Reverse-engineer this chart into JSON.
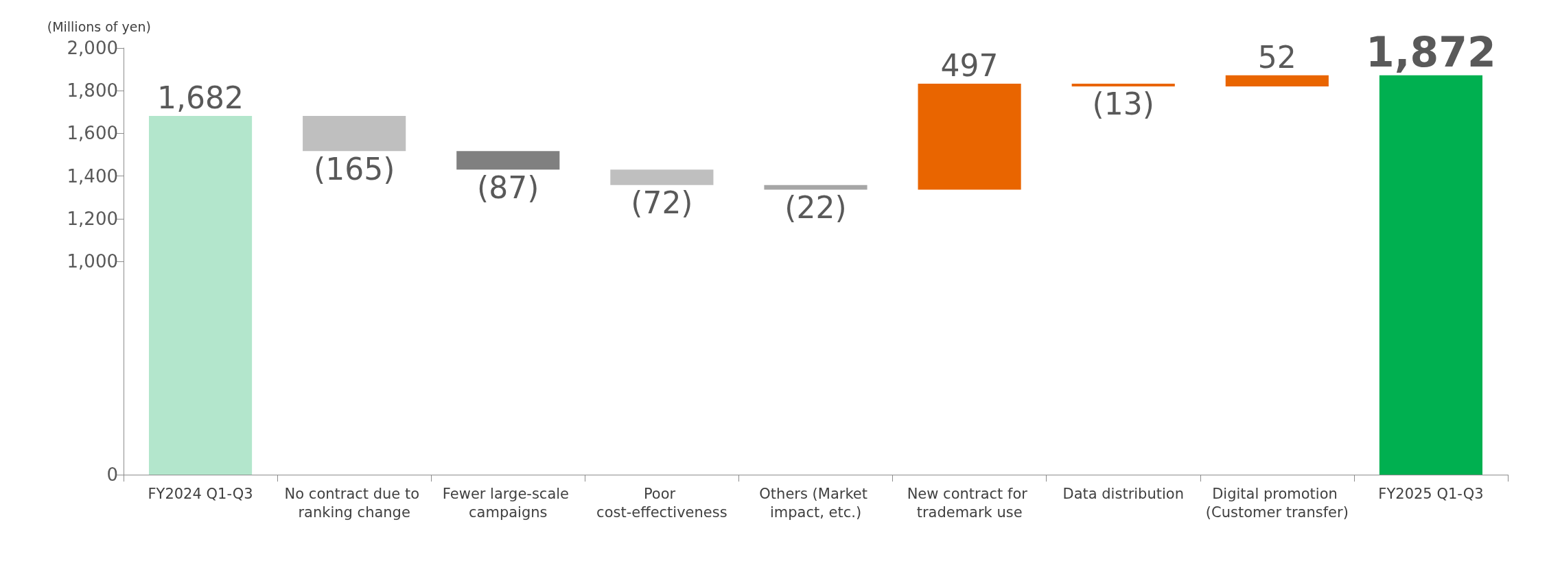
{
  "chart_data": {
    "type": "bar",
    "ylabel": "(Millions of yen)",
    "categories": [
      "FY2024 Q1-Q3",
      "No contract due to ranking change",
      "Fewer large-scale campaigns",
      "Poor cost-effectiveness",
      "Others (Market impact, etc.)",
      "New contract for trademark use",
      "Data distribution",
      "Digital promotion (Customer transfer)",
      "FY2025 Q1-Q3"
    ],
    "base": [
      0,
      1682,
      1517,
      1430,
      1358,
      1336,
      1833,
      1820,
      0
    ],
    "values": [
      1682,
      -165,
      -87,
      -72,
      -22,
      497,
      -13,
      52,
      1872
    ],
    "colors": [
      "#b3e6cc",
      "#bfbfbf",
      "#808080",
      "#bfbfbf",
      "#a6a6a6",
      "#e96500",
      "#e96500",
      "#e96500",
      "#00b050"
    ],
    "value_labels": [
      "1,682",
      "(165)",
      "(87)",
      "(72)",
      "(22)",
      "497",
      "(13)",
      "52",
      "1,872"
    ],
    "ylim": [
      0,
      2000
    ],
    "yticks": [
      0,
      {
        "value": 1000,
        "label": "1,000"
      },
      {
        "value": 1200,
        "label": "1,200"
      },
      {
        "value": 1400,
        "label": "1,400"
      },
      {
        "value": 1600,
        "label": "1,600"
      },
      {
        "value": 1800,
        "label": "1,800"
      },
      {
        "value": 2000,
        "label": "2,000"
      }
    ],
    "grid": false
  }
}
